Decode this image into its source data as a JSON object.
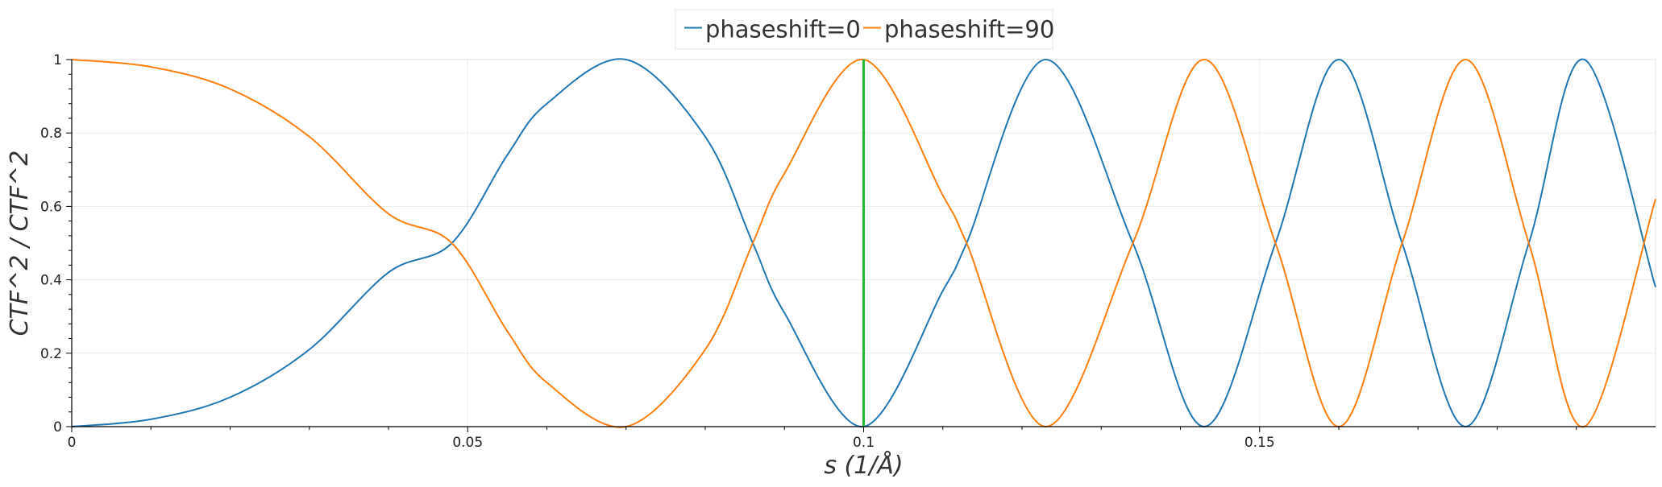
{
  "chart_data": {
    "type": "line",
    "title": "",
    "xlabel": "s (1/Å)",
    "ylabel": "CTF^2 / CTF^2",
    "xlim": [
      0,
      0.2
    ],
    "ylim": [
      0,
      1
    ],
    "x_ticks": [
      0,
      0.05,
      0.1,
      0.15
    ],
    "x_tick_labels": [
      "0",
      "0.05",
      "0.1",
      "0.15"
    ],
    "y_ticks": [
      0,
      0.2,
      0.4,
      0.6,
      0.8,
      1
    ],
    "y_tick_labels": [
      "0",
      "0.2",
      "0.4",
      "0.6",
      "0.8",
      "1"
    ],
    "grid": true,
    "legend_position": "top-center",
    "x_sample": [
      0,
      0.01,
      0.02,
      0.03,
      0.04,
      0.048,
      0.055,
      0.06,
      0.07,
      0.08,
      0.086,
      0.09,
      0.1,
      0.11,
      0.113,
      0.123,
      0.134,
      0.143,
      0.152,
      0.16,
      0.168,
      0.176,
      0.184,
      0.191,
      0.2
    ],
    "series": [
      {
        "name": "phaseshift=0",
        "color": "#1f77b4",
        "values": [
          0.0,
          0.02,
          0.08,
          0.21,
          0.42,
          0.5,
          0.74,
          0.88,
          1.0,
          0.79,
          0.5,
          0.31,
          0.0,
          0.37,
          0.5,
          1.0,
          0.5,
          0.0,
          0.5,
          1.0,
          0.5,
          0.0,
          0.5,
          1.0,
          0.38
        ]
      },
      {
        "name": "phaseshift=90",
        "color": "#ff7f0e",
        "values": [
          1.0,
          0.98,
          0.92,
          0.79,
          0.58,
          0.5,
          0.26,
          0.12,
          0.0,
          0.21,
          0.5,
          0.69,
          1.0,
          0.63,
          0.5,
          0.0,
          0.5,
          1.0,
          0.5,
          0.0,
          0.5,
          1.0,
          0.5,
          0.0,
          0.62
        ]
      }
    ],
    "vertical_marker": {
      "x": 0.1,
      "color": "#22bb33"
    }
  }
}
